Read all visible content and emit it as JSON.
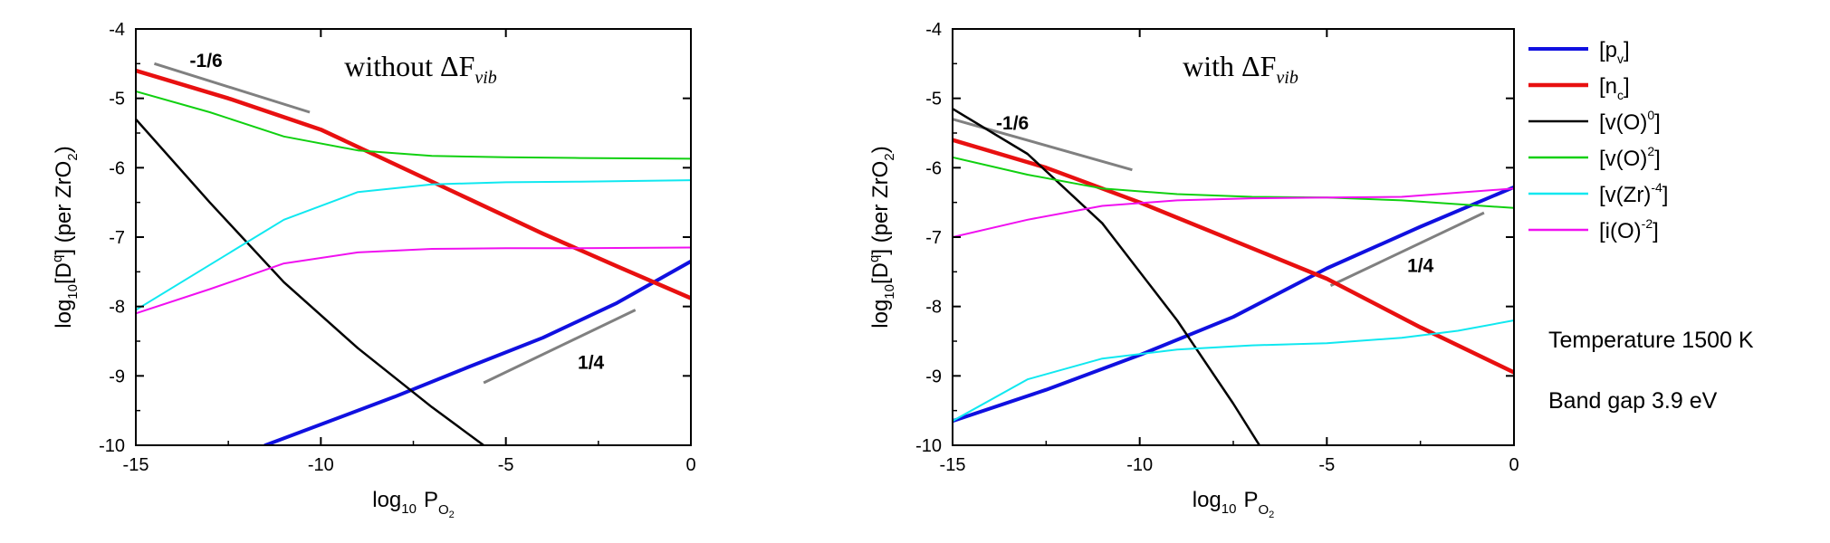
{
  "chart_data": [
    {
      "type": "line",
      "title": "without ΔF",
      "title_sub": "vib",
      "xlabel": "log",
      "xlabel_sub": "10",
      "xlabel_var": "P",
      "xlabel_var_sub": "O",
      "xlabel_var_sub2": "2",
      "ylabel": "log",
      "ylabel_sub": "10",
      "ylabel_mid": "[D",
      "ylabel_sup": "q",
      "ylabel_end": "] (per ZrO",
      "ylabel_end_sub": "2",
      "ylabel_close": ")",
      "xlim": [
        -15,
        0
      ],
      "ylim": [
        -10,
        -4
      ],
      "xticks": [
        "-15",
        "-10",
        "-5",
        "0"
      ],
      "yticks": [
        "-4",
        "-5",
        "-6",
        "-7",
        "-8",
        "-9",
        "-10"
      ],
      "series": [
        {
          "name": "[pv]",
          "color": "#1010e0",
          "width": 4,
          "x": [
            -11.5,
            -10,
            -8,
            -6,
            -4,
            -2,
            0
          ],
          "y": [
            -10.0,
            -9.7,
            -9.3,
            -8.87,
            -8.45,
            -7.95,
            -7.35
          ]
        },
        {
          "name": "[nc]",
          "color": "#e81010",
          "width": 4.5,
          "x": [
            -15,
            -12.5,
            -10,
            -8,
            -6,
            -4,
            -2,
            0
          ],
          "y": [
            -4.6,
            -5.0,
            -5.45,
            -5.95,
            -6.45,
            -6.95,
            -7.42,
            -7.88
          ]
        },
        {
          "name": "[v(O)0]",
          "color": "#000000",
          "width": 2.5,
          "x": [
            -15,
            -13,
            -11,
            -9,
            -7,
            -5.6
          ],
          "y": [
            -5.3,
            -6.5,
            -7.65,
            -8.6,
            -9.45,
            -10.0
          ]
        },
        {
          "name": "[v(O)2]",
          "color": "#10d010",
          "width": 2,
          "x": [
            -15,
            -13,
            -11,
            -9,
            -7,
            -5,
            -3,
            0
          ],
          "y": [
            -4.9,
            -5.2,
            -5.55,
            -5.75,
            -5.83,
            -5.85,
            -5.86,
            -5.87
          ]
        },
        {
          "name": "[v(Zr)-4]",
          "color": "#10e8f0",
          "width": 2,
          "x": [
            -15,
            -13,
            -11,
            -9,
            -7,
            -5,
            -3,
            0
          ],
          "y": [
            -8.05,
            -7.4,
            -6.75,
            -6.35,
            -6.24,
            -6.21,
            -6.2,
            -6.18
          ]
        },
        {
          "name": "[i(O)-2]",
          "color": "#f010f0",
          "width": 2,
          "x": [
            -15,
            -13,
            -11,
            -9,
            -7,
            -5,
            -3,
            0
          ],
          "y": [
            -8.1,
            -7.75,
            -7.38,
            -7.22,
            -7.17,
            -7.16,
            -7.16,
            -7.15
          ]
        }
      ],
      "slope_lines": [
        {
          "label": "-1/6",
          "x": [
            -14.5,
            -10.3
          ],
          "y": [
            -4.5,
            -5.2
          ],
          "label_x": -13.1,
          "label_y": -4.55
        },
        {
          "label": "1/4",
          "x": [
            -5.6,
            -1.5
          ],
          "y": [
            -9.1,
            -8.05
          ],
          "label_x": -2.7,
          "label_y": -8.9
        }
      ]
    },
    {
      "type": "line",
      "title": "with ΔF",
      "title_sub": "vib",
      "xlabel": "log",
      "xlabel_sub": "10",
      "xlabel_var": "P",
      "xlabel_var_sub": "O",
      "xlabel_var_sub2": "2",
      "ylabel": "log",
      "ylabel_sub": "10",
      "ylabel_mid": "[D",
      "ylabel_sup": "q",
      "ylabel_end": "] (per ZrO",
      "ylabel_end_sub": "2",
      "ylabel_close": ")",
      "xlim": [
        -15,
        0
      ],
      "ylim": [
        -10,
        -4
      ],
      "xticks": [
        "-15",
        "-10",
        "-5",
        "0"
      ],
      "yticks": [
        "-4",
        "-5",
        "-6",
        "-7",
        "-8",
        "-9",
        "-10"
      ],
      "series": [
        {
          "name": "[pv]",
          "color": "#1010e0",
          "width": 4,
          "x": [
            -15,
            -12.5,
            -10,
            -7.5,
            -5,
            -2.5,
            0
          ],
          "y": [
            -9.65,
            -9.2,
            -8.7,
            -8.15,
            -7.45,
            -6.85,
            -6.28
          ]
        },
        {
          "name": "[nc]",
          "color": "#e81010",
          "width": 4.5,
          "x": [
            -15,
            -12.5,
            -10,
            -7.5,
            -5,
            -2.5,
            0
          ],
          "y": [
            -5.6,
            -6.0,
            -6.5,
            -7.05,
            -7.6,
            -8.3,
            -8.95
          ]
        },
        {
          "name": "[v(O)0]",
          "color": "#000000",
          "width": 2.5,
          "x": [
            -15,
            -13,
            -11,
            -9,
            -7.5,
            -6.8
          ],
          "y": [
            -5.15,
            -5.8,
            -6.8,
            -8.2,
            -9.4,
            -10.0
          ]
        },
        {
          "name": "[v(O)2]",
          "color": "#10d010",
          "width": 2,
          "x": [
            -15,
            -13,
            -11,
            -9,
            -7,
            -5,
            -3,
            0
          ],
          "y": [
            -5.85,
            -6.1,
            -6.3,
            -6.38,
            -6.42,
            -6.43,
            -6.47,
            -6.58
          ]
        },
        {
          "name": "[v(Zr)-4]",
          "color": "#10e8f0",
          "width": 2,
          "x": [
            -15,
            -13,
            -11,
            -9,
            -7,
            -5,
            -3,
            -1.5,
            0
          ],
          "y": [
            -9.65,
            -9.05,
            -8.75,
            -8.62,
            -8.56,
            -8.53,
            -8.45,
            -8.35,
            -8.2
          ]
        },
        {
          "name": "[i(O)-2]",
          "color": "#f010f0",
          "width": 2,
          "x": [
            -15,
            -13,
            -11,
            -9,
            -7,
            -5,
            -3,
            0
          ],
          "y": [
            -7.0,
            -6.75,
            -6.55,
            -6.47,
            -6.44,
            -6.43,
            -6.42,
            -6.3
          ]
        }
      ],
      "slope_lines": [
        {
          "label": "-1/6",
          "x": [
            -15,
            -10.2
          ],
          "y": [
            -5.3,
            -6.03
          ],
          "label_x": -13.4,
          "label_y": -5.45
        },
        {
          "label": "1/4",
          "x": [
            -4.9,
            -0.8
          ],
          "y": [
            -7.7,
            -6.65
          ],
          "label_x": -2.5,
          "label_y": -7.5
        }
      ]
    }
  ],
  "legend": {
    "items": [
      {
        "base": "[p",
        "sub": "v",
        "close": "]",
        "color": "#1010e0",
        "width": 4
      },
      {
        "base": "[n",
        "sub": "c",
        "close": "]",
        "color": "#e81010",
        "width": 4.5
      },
      {
        "base": "[v(O)",
        "sup": "0",
        "close": "]",
        "color": "#000000",
        "width": 2.5
      },
      {
        "base": "[v(O)",
        "sup": "2",
        "close": "]",
        "color": "#10d010",
        "width": 2.5
      },
      {
        "base": "[v(Zr)",
        "sup": "-4",
        "close": "]",
        "color": "#10e8f0",
        "width": 2.5
      },
      {
        "base": "[i(O)",
        "sup": "-2",
        "close": "]",
        "color": "#f010f0",
        "width": 2.5
      }
    ]
  },
  "info": {
    "temperature": "Temperature 1500 K",
    "band_gap": "Band gap 3.9 eV"
  }
}
